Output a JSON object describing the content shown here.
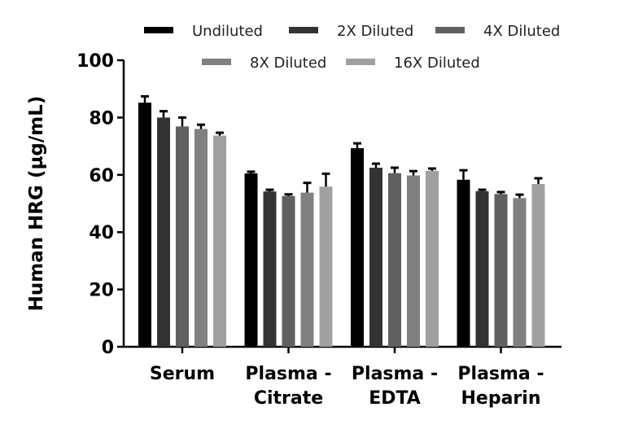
{
  "chart_data": {
    "type": "bar",
    "title": "",
    "xlabel": "",
    "ylabel": "Human HRG (µg/mL)",
    "ylim": [
      0,
      100
    ],
    "yticks": [
      "0",
      "20",
      "40",
      "60",
      "80",
      "100"
    ],
    "categories": [
      [
        "Serum"
      ],
      [
        "Plasma -",
        "Citrate"
      ],
      [
        "Plasma -",
        "EDTA"
      ],
      [
        "Plasma -",
        "Heparin"
      ]
    ],
    "legend_placement": "top",
    "grid": false,
    "series": [
      {
        "name": "Undiluted",
        "color": "#000000",
        "values": [
          85.2,
          60.5,
          69.3,
          58.3
        ],
        "error": [
          2.2,
          0.6,
          1.7,
          3.3
        ]
      },
      {
        "name": "2X Diluted",
        "color": "#333333",
        "values": [
          80.0,
          54.2,
          62.5,
          54.3
        ],
        "error": [
          2.2,
          0.6,
          1.4,
          0.5
        ]
      },
      {
        "name": "4X Diluted",
        "color": "#606060",
        "values": [
          76.9,
          52.6,
          60.6,
          53.3
        ],
        "error": [
          3.1,
          0.6,
          1.9,
          0.7
        ]
      },
      {
        "name": "8X Diluted",
        "color": "#808080",
        "values": [
          76.0,
          53.8,
          59.8,
          51.9
        ],
        "error": [
          1.5,
          3.4,
          1.5,
          1.2
        ]
      },
      {
        "name": "16X Diluted",
        "color": "#a0a0a0",
        "values": [
          73.7,
          55.9,
          61.4,
          56.8
        ],
        "error": [
          1.0,
          4.5,
          0.8,
          2.0
        ]
      }
    ]
  }
}
